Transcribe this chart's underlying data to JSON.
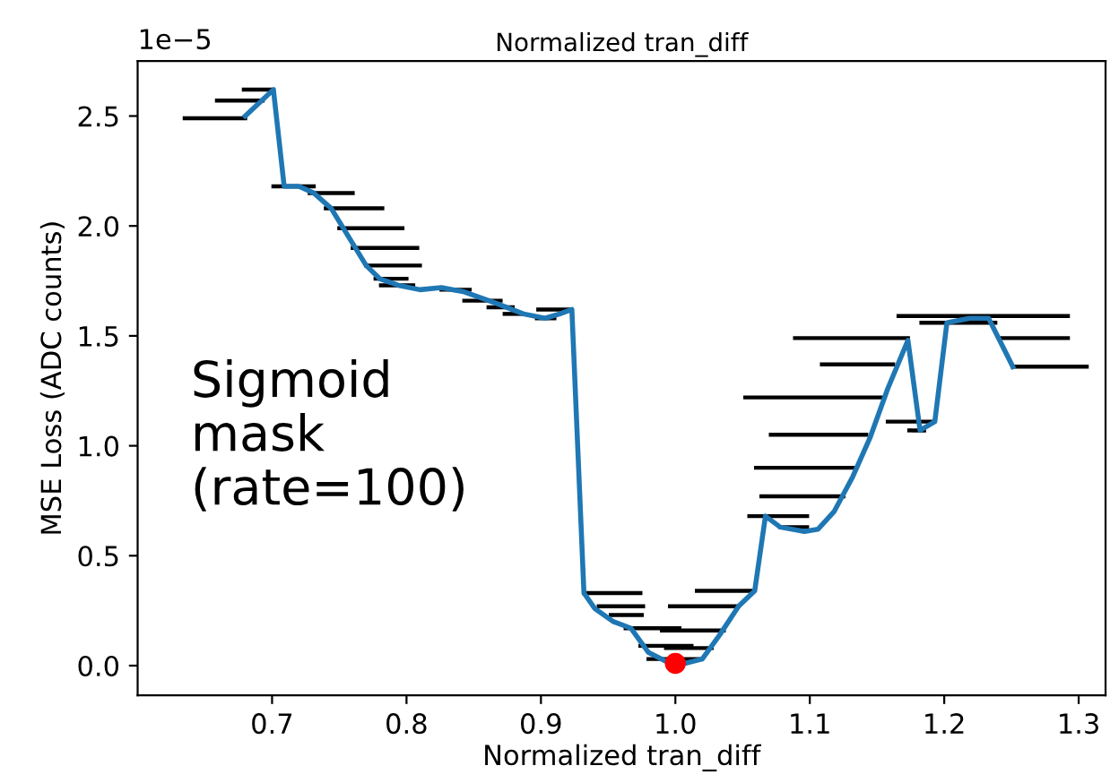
{
  "chart_data": {
    "type": "line",
    "title": "Normalized tran_diff",
    "xlabel": "Normalized tran_diff",
    "ylabel": "MSE Loss (ADC counts)",
    "xlim": [
      0.6,
      1.32
    ],
    "ylim": [
      -0.135,
      2.75
    ],
    "xticks": [
      0.7,
      0.8,
      0.9,
      {
        "value": 1,
        "label": "1.0"
      },
      1.1,
      1.2,
      1.3
    ],
    "yticks": [
      {
        "value": 0,
        "label": "0.0"
      },
      0.5,
      {
        "value": 1,
        "label": "1.0"
      },
      1.5,
      {
        "value": 2,
        "label": "2.0"
      },
      2.5
    ],
    "grid": false,
    "marker": "none",
    "line_style": "solid",
    "annotations": [
      "1e−5",
      "Sigmoid\nmask\n(rate=100)"
    ],
    "series": [
      {
        "color": "#000000",
        "x": [
          0.635,
          0.68
        ],
        "values": [
          2.49,
          2.49
        ]
      },
      {
        "color": "#000000",
        "x": [
          0.659,
          0.693
        ],
        "values": [
          2.57,
          2.57
        ]
      },
      {
        "color": "#000000",
        "x": [
          0.679,
          0.701
        ],
        "values": [
          2.62,
          2.62
        ]
      },
      {
        "color": "#000000",
        "x": [
          0.701,
          0.731
        ],
        "values": [
          2.18,
          2.18
        ]
      },
      {
        "color": "#000000",
        "x": [
          0.728,
          0.76
        ],
        "values": [
          2.15,
          2.15
        ]
      },
      {
        "color": "#000000",
        "x": [
          0.74,
          0.782
        ],
        "values": [
          2.08,
          2.08
        ]
      },
      {
        "color": "#000000",
        "x": [
          0.75,
          0.797
        ],
        "values": [
          1.99,
          1.99
        ]
      },
      {
        "color": "#000000",
        "x": [
          0.76,
          0.808
        ],
        "values": [
          1.9,
          1.9
        ]
      },
      {
        "color": "#000000",
        "x": [
          0.77,
          0.81
        ],
        "values": [
          1.82,
          1.82
        ]
      },
      {
        "color": "#000000",
        "x": [
          0.777,
          0.8
        ],
        "values": [
          1.76,
          1.76
        ]
      },
      {
        "color": "#000000",
        "x": [
          0.781,
          0.805
        ],
        "values": [
          1.73,
          1.73
        ]
      },
      {
        "color": "#000000",
        "x": [
          0.826,
          0.847
        ],
        "values": [
          1.71,
          1.71
        ]
      },
      {
        "color": "#000000",
        "x": [
          0.843,
          0.87
        ],
        "values": [
          1.66,
          1.66
        ]
      },
      {
        "color": "#000000",
        "x": [
          0.861,
          0.879
        ],
        "values": [
          1.63,
          1.63
        ]
      },
      {
        "color": "#000000",
        "x": [
          0.873,
          0.887
        ],
        "values": [
          1.6,
          1.6
        ]
      },
      {
        "color": "#000000",
        "x": [
          0.897,
          0.91
        ],
        "values": [
          1.58,
          1.58
        ]
      },
      {
        "color": "#000000",
        "x": [
          0.898,
          0.922
        ],
        "values": [
          1.62,
          1.62
        ]
      },
      {
        "color": "#000000",
        "x": [
          0.932,
          0.974
        ],
        "values": [
          0.33,
          0.33
        ]
      },
      {
        "color": "#000000",
        "x": [
          0.943,
          0.976
        ],
        "values": [
          0.27,
          0.27
        ]
      },
      {
        "color": "#000000",
        "x": [
          0.952,
          0.975
        ],
        "values": [
          0.23,
          0.23
        ]
      },
      {
        "color": "#000000",
        "x": [
          0.963,
          1.003
        ],
        "values": [
          0.17,
          0.17
        ]
      },
      {
        "color": "#000000",
        "x": [
          0.99,
          1.036
        ],
        "values": [
          0.16,
          0.16
        ]
      },
      {
        "color": "#000000",
        "x": [
          0.974,
          1.012
        ],
        "values": [
          0.09,
          0.09
        ]
      },
      {
        "color": "#000000",
        "x": [
          0.993,
          1.027
        ],
        "values": [
          0.08,
          0.08
        ]
      },
      {
        "color": "#000000",
        "x": [
          0.98,
          1.019
        ],
        "values": [
          0.03,
          0.03
        ]
      },
      {
        "color": "#000000",
        "x": [
          0.996,
          1.047
        ],
        "values": [
          0.27,
          0.27
        ]
      },
      {
        "color": "#000000",
        "x": [
          1.016,
          1.056
        ],
        "values": [
          0.34,
          0.34
        ]
      },
      {
        "color": "#000000",
        "x": [
          1.055,
          1.098
        ],
        "values": [
          0.68,
          0.68
        ]
      },
      {
        "color": "#000000",
        "x": [
          1.078,
          1.098
        ],
        "values": [
          0.63,
          0.63
        ]
      },
      {
        "color": "#000000",
        "x": [
          1.064,
          1.125
        ],
        "values": [
          0.77,
          0.77
        ]
      },
      {
        "color": "#000000",
        "x": [
          1.06,
          1.133
        ],
        "values": [
          0.9,
          0.9
        ]
      },
      {
        "color": "#000000",
        "x": [
          1.071,
          1.142
        ],
        "values": [
          1.05,
          1.05
        ]
      },
      {
        "color": "#000000",
        "x": [
          1.052,
          1.153
        ],
        "values": [
          1.22,
          1.22
        ]
      },
      {
        "color": "#000000",
        "x": [
          1.109,
          1.162
        ],
        "values": [
          1.37,
          1.37
        ]
      },
      {
        "color": "#000000",
        "x": [
          1.089,
          1.173
        ],
        "values": [
          1.49,
          1.49
        ]
      },
      {
        "color": "#000000",
        "x": [
          1.158,
          1.191
        ],
        "values": [
          1.11,
          1.11
        ]
      },
      {
        "color": "#000000",
        "x": [
          1.174,
          1.185
        ],
        "values": [
          1.07,
          1.07
        ]
      },
      {
        "color": "#000000",
        "x": [
          1.166,
          1.292
        ],
        "values": [
          1.59,
          1.59
        ]
      },
      {
        "color": "#000000",
        "x": [
          1.183,
          1.238
        ],
        "values": [
          1.56,
          1.56
        ]
      },
      {
        "color": "#000000",
        "x": [
          1.242,
          1.292
        ],
        "values": [
          1.49,
          1.49
        ]
      },
      {
        "color": "#000000",
        "x": [
          1.251,
          1.306
        ],
        "values": [
          1.36,
          1.36
        ]
      },
      {
        "color": "#1f77b4",
        "x": [
          0.68,
          0.701,
          0.709,
          0.72,
          0.731,
          0.744,
          0.76,
          0.77,
          0.78,
          0.794,
          0.81,
          0.826,
          0.843,
          0.866,
          0.887,
          0.903,
          0.914,
          0.923,
          0.932,
          0.94,
          0.954,
          0.967,
          0.98,
          0.996,
          1.007,
          1.02,
          1.033,
          1.047,
          1.059,
          1.067,
          1.078,
          1.096,
          1.106,
          1.118,
          1.132,
          1.145,
          1.158,
          1.173,
          1.182,
          1.193,
          1.202,
          1.219,
          1.233,
          1.251
        ],
        "values": [
          2.5,
          2.62,
          2.18,
          2.18,
          2.15,
          2.08,
          1.92,
          1.82,
          1.76,
          1.73,
          1.71,
          1.72,
          1.7,
          1.65,
          1.6,
          1.58,
          1.6,
          1.62,
          0.33,
          0.26,
          0.2,
          0.17,
          0.06,
          0.01,
          0.01,
          0.03,
          0.14,
          0.27,
          0.34,
          0.68,
          0.63,
          0.61,
          0.62,
          0.7,
          0.86,
          1.04,
          1.26,
          1.48,
          1.07,
          1.11,
          1.56,
          1.58,
          1.58,
          1.36
        ]
      },
      {
        "type": "scatter",
        "color": "#ff0000",
        "marker": "circle",
        "x": [
          1.0
        ],
        "values": [
          0.01
        ]
      }
    ]
  }
}
